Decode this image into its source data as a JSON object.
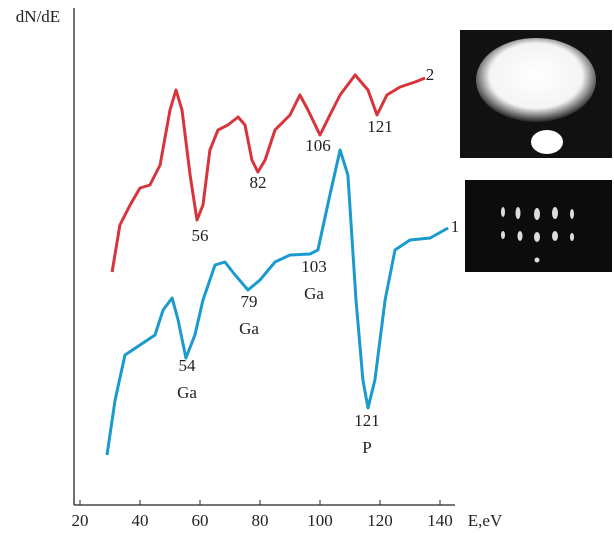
{
  "chart_data": {
    "type": "line",
    "y_label": "dN/dE",
    "x_label": "E,eV",
    "xlim": [
      18,
      145
    ],
    "ylim": [
      0,
      100
    ],
    "xticks": [
      20,
      40,
      60,
      80,
      100,
      120,
      140
    ],
    "series": [
      {
        "name": "2",
        "color": "#d8343c",
        "x": [
          30.7,
          33.3,
          36.7,
          40,
          43.3,
          46.7,
          50,
          52,
          54,
          56.7,
          59,
          61,
          63.3,
          66,
          69.3,
          72.7,
          75,
          77.3,
          79.3,
          81.7,
          85,
          90,
          93.3,
          96,
          100,
          103.3,
          106.7,
          111.7,
          116,
          119,
          122.3,
          126.7,
          131.7,
          135
        ],
        "values": [
          46.6,
          56,
          60,
          63.4,
          64,
          68,
          79,
          83,
          79,
          66,
          57,
          60,
          71,
          75,
          76,
          77.6,
          76,
          69,
          66.6,
          69,
          75,
          78,
          82,
          79,
          74,
          78,
          82,
          86,
          83,
          78,
          82,
          83.6,
          84.6,
          85.4
        ]
      },
      {
        "name": "1",
        "color": "#1b9ad0",
        "x": [
          29,
          31.7,
          35,
          40,
          45,
          47.7,
          50.7,
          52.7,
          55.3,
          58.3,
          61,
          65,
          68.3,
          71.7,
          76,
          80,
          85,
          90,
          96.7,
          99.3,
          103.3,
          106.7,
          109.3,
          112,
          114.3,
          116,
          118.3,
          121.7,
          125,
          130,
          136.7,
          142.7
        ],
        "values": [
          10,
          21,
          30,
          32,
          34,
          39,
          41.4,
          37,
          29.4,
          34,
          41,
          48,
          48.6,
          46,
          43,
          45,
          48.6,
          50,
          50.2,
          51,
          62,
          71,
          66,
          41,
          25,
          19.4,
          25,
          41,
          51,
          53,
          53.4,
          55.4
        ]
      }
    ],
    "annotations": [
      {
        "lines": [
          "56"
        ]
      },
      {
        "lines": [
          "82"
        ]
      },
      {
        "lines": [
          "106"
        ]
      },
      {
        "lines": [
          "121"
        ]
      },
      {
        "lines": [
          "54",
          "Ga"
        ]
      },
      {
        "lines": [
          "79",
          "Ga"
        ]
      },
      {
        "lines": [
          "103",
          "Ga"
        ]
      },
      {
        "lines": [
          "121",
          "P"
        ]
      }
    ]
  }
}
